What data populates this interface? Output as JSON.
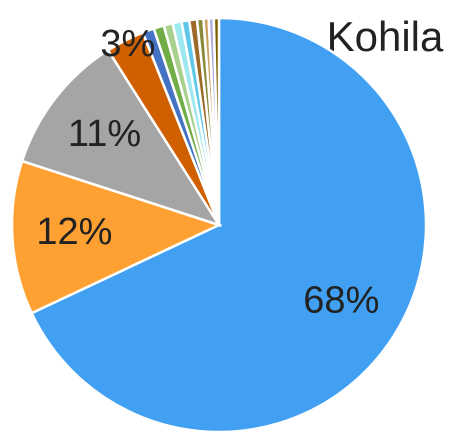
{
  "chart_data": {
    "type": "pie",
    "title": "Kohila",
    "values": [
      68,
      12,
      11,
      3,
      0.9,
      0.8,
      0.7,
      0.7,
      0.6,
      0.6,
      0.5,
      0.4,
      0.4,
      0.4
    ],
    "value_labels": [
      "68%",
      "12%",
      "11%",
      "3%",
      null,
      null,
      null,
      null,
      null,
      null,
      null,
      null,
      null,
      null
    ],
    "colors": [
      "#42a0f2",
      "#ffa033",
      "#a5a5a5",
      "#d05f00",
      "#4472c4",
      "#70ad47",
      "#a9d18e",
      "#9ee8f0",
      "#5fc8e8",
      "#9e6a2a",
      "#8a8a3a",
      "#c9a060",
      "#b0b0d8",
      "#7f6000"
    ]
  }
}
